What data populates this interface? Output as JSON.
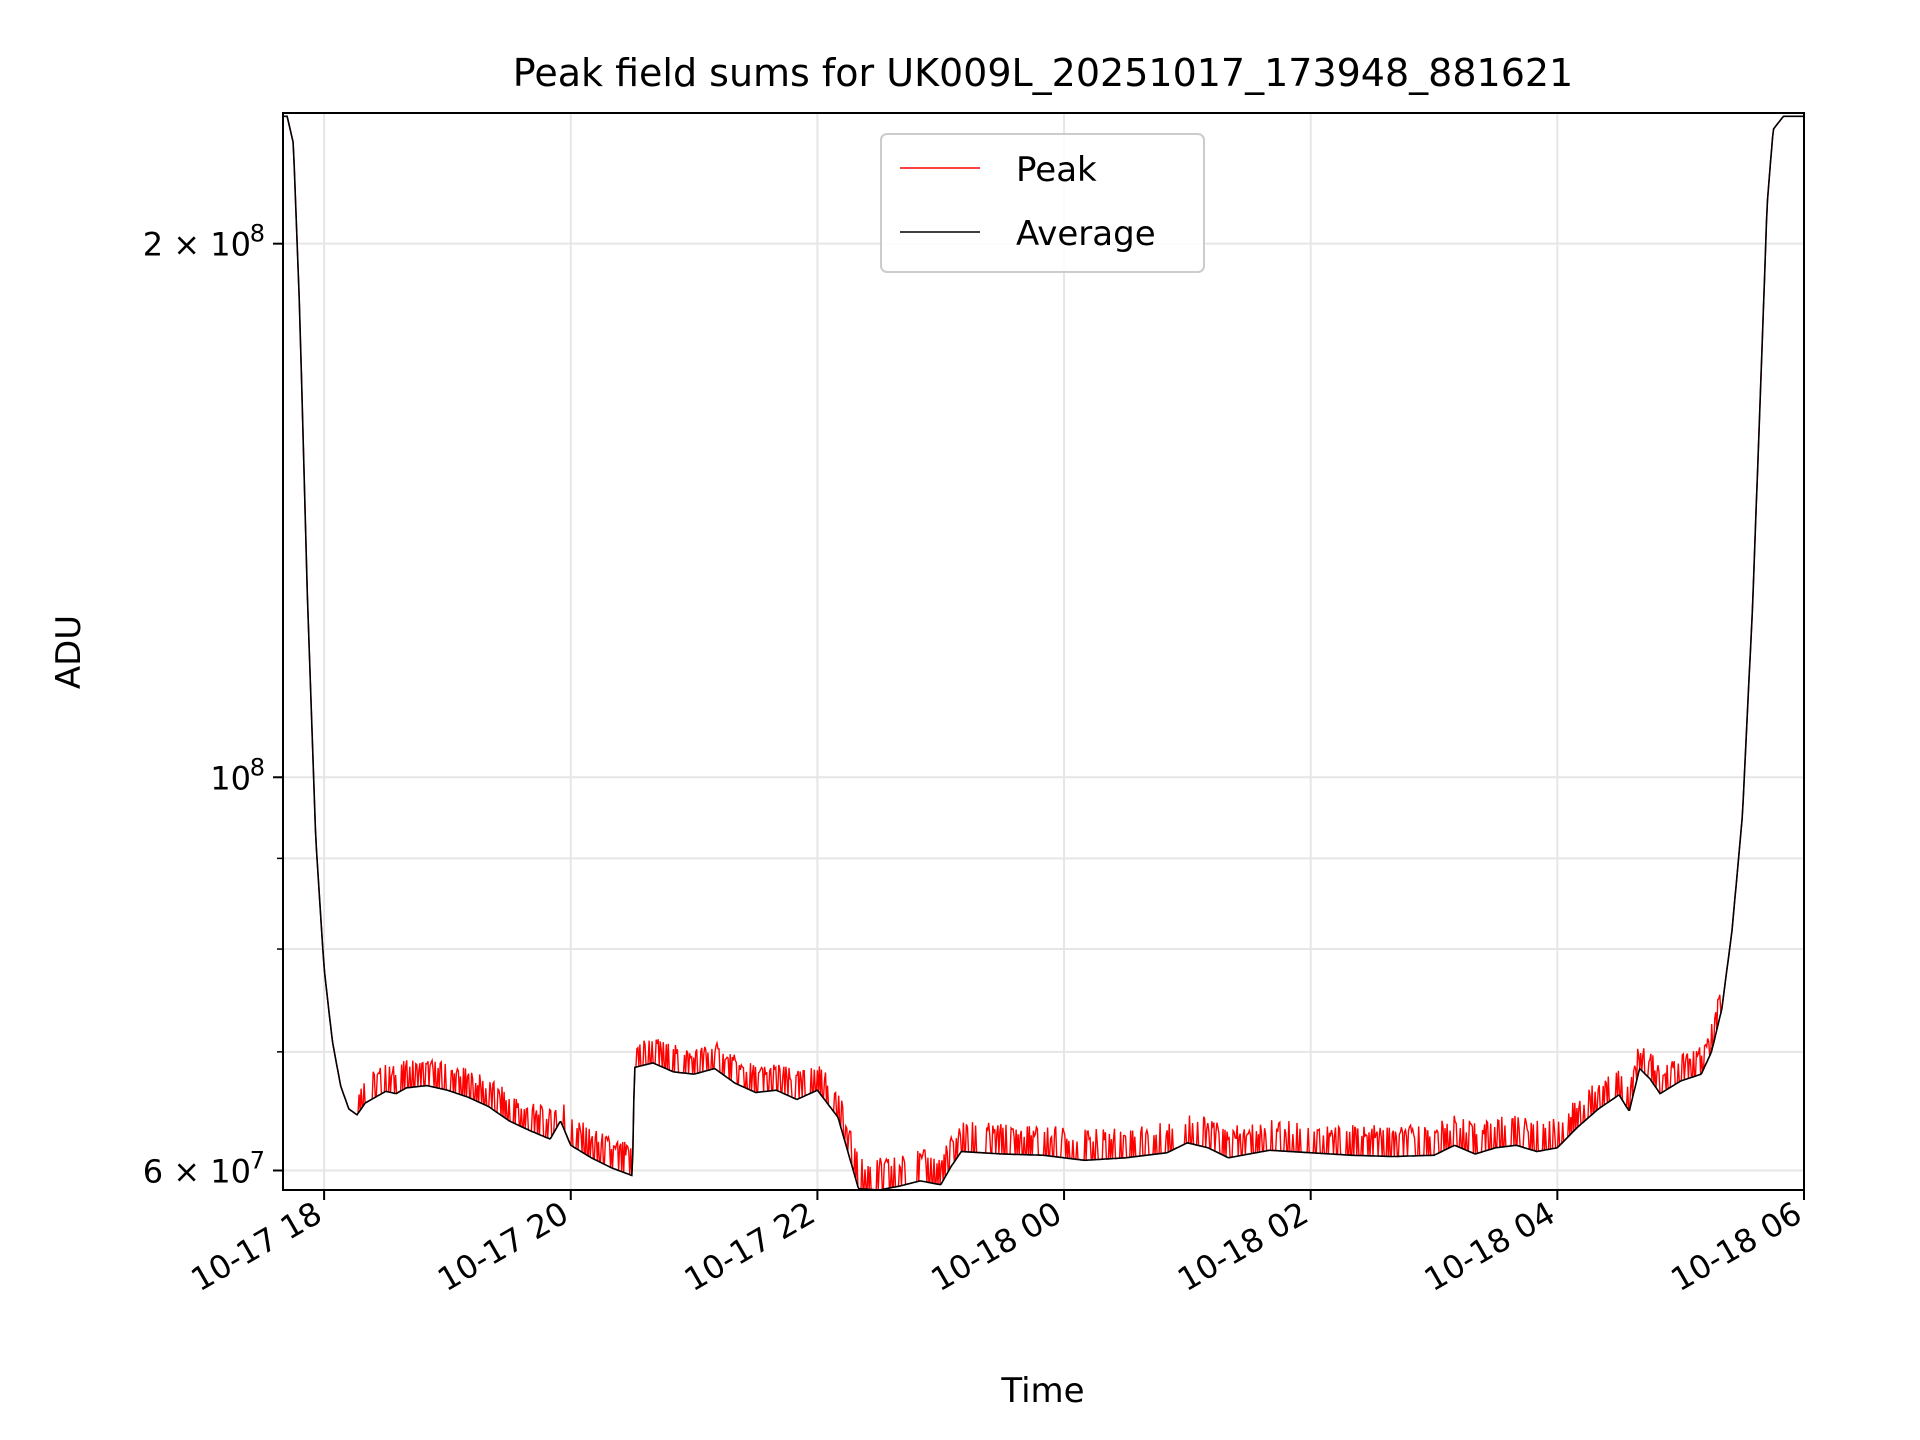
{
  "chart_data": {
    "type": "line",
    "title": "Peak field sums for UK009L_20251017_173948_881621",
    "xlabel": "Time",
    "ylabel": "ADU",
    "y_scale": "log",
    "ylim": [
      58500000,
      237000000
    ],
    "xlim": [
      "2025-10-17 17:40",
      "2025-10-18 06:00"
    ],
    "grid": true,
    "legend_position": "upper center",
    "x_ticks": [
      {
        "t": "2025-10-17 18:00",
        "label": "10-17 18"
      },
      {
        "t": "2025-10-17 20:00",
        "label": "10-17 20"
      },
      {
        "t": "2025-10-17 22:00",
        "label": "10-17 22"
      },
      {
        "t": "2025-10-18 00:00",
        "label": "10-18 00"
      },
      {
        "t": "2025-10-18 02:00",
        "label": "10-18 02"
      },
      {
        "t": "2025-10-18 04:00",
        "label": "10-18 04"
      },
      {
        "t": "2025-10-18 06:00",
        "label": "10-18 06"
      }
    ],
    "y_major_ticks": [
      {
        "value": 60000000,
        "label": "6 × 10",
        "exp": "7"
      },
      {
        "value": 100000000,
        "label": "10",
        "exp": "8"
      },
      {
        "value": 200000000,
        "label": "2 × 10",
        "exp": "8"
      }
    ],
    "y_minor_ticks": [
      70000000,
      80000000,
      90000000
    ],
    "series": [
      {
        "name": "Peak",
        "color": "#ff0000",
        "spike_amplitude": 2500000,
        "x": [
          "2025-10-17 17:40",
          "2025-10-17 17:42",
          "2025-10-17 17:45",
          "2025-10-17 17:48",
          "2025-10-17 17:52",
          "2025-10-17 17:56",
          "2025-10-17 18:00",
          "2025-10-17 18:04",
          "2025-10-17 18:08",
          "2025-10-17 18:12",
          "2025-10-17 18:16",
          "2025-10-17 18:20",
          "2025-10-17 18:25",
          "2025-10-17 18:30",
          "2025-10-17 18:35",
          "2025-10-17 18:40",
          "2025-10-17 18:50",
          "2025-10-17 19:00",
          "2025-10-17 19:10",
          "2025-10-17 19:20",
          "2025-10-17 19:30",
          "2025-10-17 19:40",
          "2025-10-17 19:50",
          "2025-10-17 19:55",
          "2025-10-17 20:00",
          "2025-10-17 20:10",
          "2025-10-17 20:20",
          "2025-10-17 20:30",
          "2025-10-17 20:31",
          "2025-10-17 20:40",
          "2025-10-17 20:50",
          "2025-10-17 21:00",
          "2025-10-17 21:10",
          "2025-10-17 21:20",
          "2025-10-17 21:30",
          "2025-10-17 21:40",
          "2025-10-17 21:50",
          "2025-10-17 22:00",
          "2025-10-17 22:10",
          "2025-10-17 22:20",
          "2025-10-17 22:30",
          "2025-10-17 22:40",
          "2025-10-17 22:50",
          "2025-10-17 23:00",
          "2025-10-17 23:05",
          "2025-10-17 23:10",
          "2025-10-17 23:30",
          "2025-10-17 23:50",
          "2025-10-18 00:10",
          "2025-10-18 00:30",
          "2025-10-18 00:50",
          "2025-10-18 01:00",
          "2025-10-18 01:10",
          "2025-10-18 01:20",
          "2025-10-18 01:40",
          "2025-10-18 02:00",
          "2025-10-18 02:20",
          "2025-10-18 02:40",
          "2025-10-18 03:00",
          "2025-10-18 03:10",
          "2025-10-18 03:20",
          "2025-10-18 03:30",
          "2025-10-18 03:40",
          "2025-10-18 03:50",
          "2025-10-18 04:00",
          "2025-10-18 04:10",
          "2025-10-18 04:20",
          "2025-10-18 04:30",
          "2025-10-18 04:35",
          "2025-10-18 04:40",
          "2025-10-18 04:45",
          "2025-10-18 04:50",
          "2025-10-18 05:00",
          "2025-10-18 05:10",
          "2025-10-18 05:15",
          "2025-10-18 05:20",
          "2025-10-18 05:25",
          "2025-10-18 05:30",
          "2025-10-18 05:35",
          "2025-10-18 05:40",
          "2025-10-18 05:42",
          "2025-10-18 05:45",
          "2025-10-18 05:50",
          "2025-10-18 06:00"
        ],
        "y": [
          236000000,
          236000000,
          228000000,
          185000000,
          125000000,
          92000000,
          78000000,
          71000000,
          67000000,
          65000000,
          64500000,
          65500000,
          66000000,
          66500000,
          66300000,
          66800000,
          67000000,
          66600000,
          66000000,
          65200000,
          64000000,
          63200000,
          62500000,
          64000000,
          62000000,
          61000000,
          60200000,
          59600000,
          68600000,
          69000000,
          68200000,
          68000000,
          68500000,
          67200000,
          66400000,
          66600000,
          65800000,
          66600000,
          64300000,
          58600000,
          58500000,
          58800000,
          59200000,
          58900000,
          60300000,
          61500000,
          61300000,
          61200000,
          60800000,
          61000000,
          61400000,
          62200000,
          61800000,
          61000000,
          61600000,
          61400000,
          61200000,
          61100000,
          61200000,
          62000000,
          61300000,
          61800000,
          62000000,
          61500000,
          61800000,
          63500000,
          65000000,
          66200000,
          64800000,
          68500000,
          67600000,
          66300000,
          67400000,
          68000000,
          70000000,
          74000000,
          82000000,
          95000000,
          125000000,
          180000000,
          210000000,
          232000000,
          236000000,
          236000000
        ]
      },
      {
        "name": "Average",
        "color": "#000000",
        "x": [
          "2025-10-17 17:40",
          "2025-10-17 17:42",
          "2025-10-17 17:45",
          "2025-10-17 17:48",
          "2025-10-17 17:52",
          "2025-10-17 17:56",
          "2025-10-17 18:00",
          "2025-10-17 18:04",
          "2025-10-17 18:08",
          "2025-10-17 18:12",
          "2025-10-17 18:16",
          "2025-10-17 18:20",
          "2025-10-17 18:25",
          "2025-10-17 18:30",
          "2025-10-17 18:35",
          "2025-10-17 18:40",
          "2025-10-17 18:50",
          "2025-10-17 19:00",
          "2025-10-17 19:10",
          "2025-10-17 19:20",
          "2025-10-17 19:30",
          "2025-10-17 19:40",
          "2025-10-17 19:50",
          "2025-10-17 19:55",
          "2025-10-17 20:00",
          "2025-10-17 20:10",
          "2025-10-17 20:20",
          "2025-10-17 20:30",
          "2025-10-17 20:31",
          "2025-10-17 20:40",
          "2025-10-17 20:50",
          "2025-10-17 21:00",
          "2025-10-17 21:10",
          "2025-10-17 21:20",
          "2025-10-17 21:30",
          "2025-10-17 21:40",
          "2025-10-17 21:50",
          "2025-10-17 22:00",
          "2025-10-17 22:10",
          "2025-10-17 22:20",
          "2025-10-17 22:30",
          "2025-10-17 22:40",
          "2025-10-17 22:50",
          "2025-10-17 23:00",
          "2025-10-17 23:05",
          "2025-10-17 23:10",
          "2025-10-17 23:30",
          "2025-10-17 23:50",
          "2025-10-18 00:10",
          "2025-10-18 00:30",
          "2025-10-18 00:50",
          "2025-10-18 01:00",
          "2025-10-18 01:10",
          "2025-10-18 01:20",
          "2025-10-18 01:40",
          "2025-10-18 02:00",
          "2025-10-18 02:20",
          "2025-10-18 02:40",
          "2025-10-18 03:00",
          "2025-10-18 03:10",
          "2025-10-18 03:20",
          "2025-10-18 03:30",
          "2025-10-18 03:40",
          "2025-10-18 03:50",
          "2025-10-18 04:00",
          "2025-10-18 04:10",
          "2025-10-18 04:20",
          "2025-10-18 04:30",
          "2025-10-18 04:35",
          "2025-10-18 04:40",
          "2025-10-18 04:45",
          "2025-10-18 04:50",
          "2025-10-18 05:00",
          "2025-10-18 05:10",
          "2025-10-18 05:15",
          "2025-10-18 05:20",
          "2025-10-18 05:25",
          "2025-10-18 05:30",
          "2025-10-18 05:35",
          "2025-10-18 05:40",
          "2025-10-18 05:42",
          "2025-10-18 05:45",
          "2025-10-18 05:50",
          "2025-10-18 06:00"
        ],
        "y": [
          236000000,
          236000000,
          228000000,
          185000000,
          125000000,
          92000000,
          78000000,
          71000000,
          67000000,
          65000000,
          64500000,
          65500000,
          66000000,
          66500000,
          66300000,
          66800000,
          67000000,
          66600000,
          66000000,
          65200000,
          64000000,
          63200000,
          62500000,
          64000000,
          62000000,
          61000000,
          60200000,
          59600000,
          68600000,
          69000000,
          68200000,
          68000000,
          68500000,
          67200000,
          66400000,
          66600000,
          65800000,
          66600000,
          64300000,
          58600000,
          58500000,
          58800000,
          59200000,
          58900000,
          60300000,
          61500000,
          61300000,
          61200000,
          60800000,
          61000000,
          61400000,
          62200000,
          61800000,
          61000000,
          61600000,
          61400000,
          61200000,
          61100000,
          61200000,
          62000000,
          61300000,
          61800000,
          62000000,
          61500000,
          61800000,
          63500000,
          65000000,
          66200000,
          64800000,
          68500000,
          67600000,
          66300000,
          67400000,
          68000000,
          70000000,
          74000000,
          82000000,
          95000000,
          125000000,
          180000000,
          210000000,
          232000000,
          236000000,
          236000000
        ]
      }
    ]
  }
}
